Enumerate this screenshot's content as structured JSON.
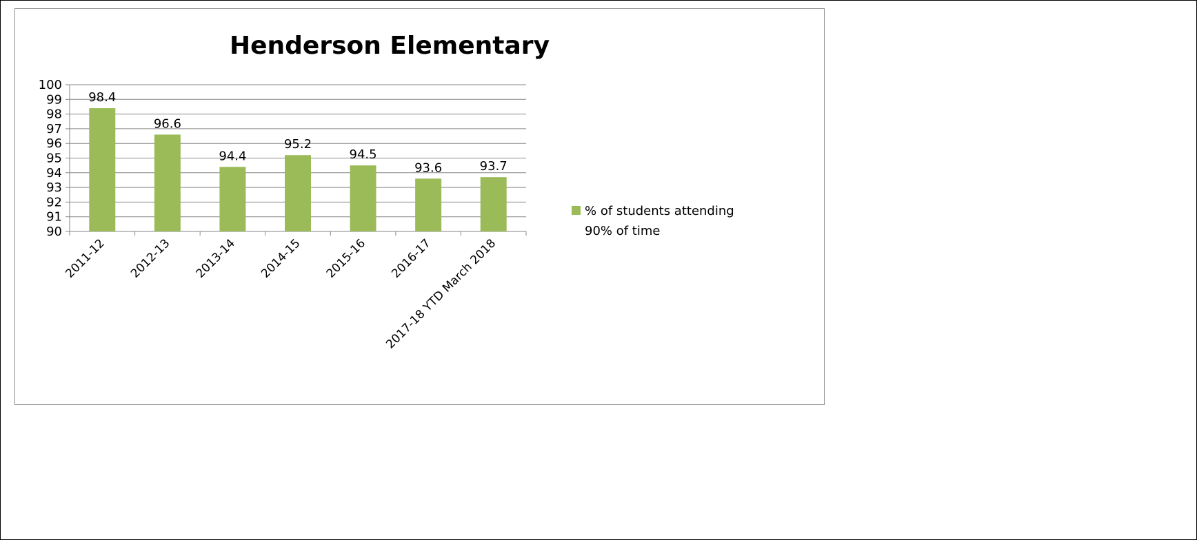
{
  "chart_data": {
    "type": "bar",
    "title": "Henderson Elementary",
    "xlabel": "",
    "ylabel": "",
    "ylim": [
      90,
      100
    ],
    "yticks": [
      90,
      91,
      92,
      93,
      94,
      95,
      96,
      97,
      98,
      99,
      100
    ],
    "grid": true,
    "legend_position": "right",
    "categories": [
      "2011-12",
      "2012-13",
      "2013-14",
      "2014-15",
      "2015-16",
      "2016-17",
      "2017-18 YTD March 2018"
    ],
    "series": [
      {
        "name": "% of students attending 90% of time",
        "color": "#9bbb59",
        "values": [
          98.4,
          96.6,
          94.4,
          95.2,
          94.5,
          93.6,
          93.7
        ]
      }
    ]
  }
}
